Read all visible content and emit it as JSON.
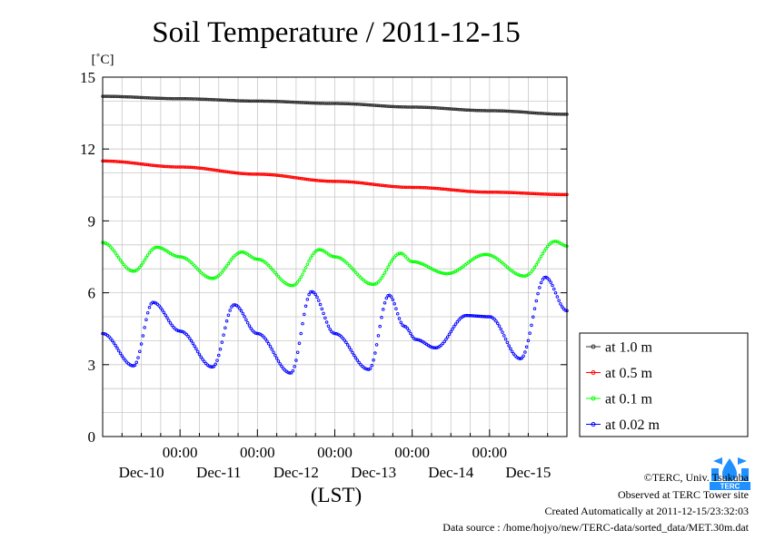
{
  "chart_data": {
    "type": "scatter",
    "title": "Soil Temperature / 2011-12-15",
    "ylabel": "[˚C]",
    "xlabel": "(LST)",
    "ylim": [
      0,
      15
    ],
    "yticks": [
      0,
      3,
      6,
      9,
      12,
      15
    ],
    "x_unit": "days since 2011-12-09 00:00 LST",
    "xlim": [
      0.0,
      6.0
    ],
    "xtick_major_labels": [
      "00:00",
      "00:00",
      "00:00",
      "00:00",
      "00:00"
    ],
    "xtick_major_positions": [
      1,
      2,
      3,
      4,
      5
    ],
    "date_labels": [
      "Dec-10",
      "Dec-11",
      "Dec-12",
      "Dec-13",
      "Dec-14",
      "Dec-15"
    ],
    "date_label_positions": [
      0.5,
      1.5,
      2.5,
      3.5,
      4.5,
      5.5
    ],
    "grid": true,
    "legend_position": "right-bottom-outside",
    "series": [
      {
        "name": "at 1.0 m",
        "color": "#303030",
        "x": [
          0.0,
          1.0,
          2.0,
          3.0,
          4.0,
          5.0,
          6.0
        ],
        "y": [
          14.2,
          14.1,
          14.0,
          13.9,
          13.75,
          13.6,
          13.45
        ]
      },
      {
        "name": "at 0.5 m",
        "color": "#ff0000",
        "x": [
          0.0,
          1.0,
          2.0,
          3.0,
          4.0,
          5.0,
          6.0
        ],
        "y": [
          11.5,
          11.25,
          10.95,
          10.65,
          10.4,
          10.2,
          10.1
        ]
      },
      {
        "name": "at 0.1 m",
        "color": "#00ff00",
        "x": [
          0.0,
          0.4,
          0.7,
          1.0,
          1.42,
          1.8,
          2.0,
          2.45,
          2.8,
          3.0,
          3.5,
          3.85,
          4.0,
          4.45,
          4.95,
          5.45,
          5.85,
          6.0
        ],
        "y": [
          8.1,
          6.9,
          7.9,
          7.5,
          6.6,
          7.7,
          7.4,
          6.3,
          7.8,
          7.5,
          6.35,
          7.65,
          7.3,
          6.8,
          7.6,
          6.7,
          8.15,
          7.95
        ]
      },
      {
        "name": "at 0.02 m",
        "color": "#0000ff",
        "x": [
          0.0,
          0.4,
          0.65,
          1.0,
          1.42,
          1.7,
          2.0,
          2.43,
          2.7,
          3.0,
          3.44,
          3.7,
          3.9,
          4.05,
          4.3,
          4.7,
          5.0,
          5.4,
          5.72,
          6.0
        ],
        "y": [
          4.3,
          2.95,
          5.6,
          4.4,
          2.9,
          5.5,
          4.3,
          2.65,
          6.05,
          4.3,
          2.8,
          5.9,
          4.6,
          4.05,
          3.7,
          5.05,
          5.0,
          3.25,
          6.65,
          5.25
        ]
      }
    ]
  },
  "credits": {
    "copyright": "©TERC, Univ. Tsukuba",
    "site": "Observed at TERC Tower site",
    "created": "Created Automatically at 2011-12-15/23:32:03",
    "source": "Data source : /home/hojyo/new/TERC-data/sorted_data/MET.30m.dat"
  },
  "logo": {
    "name": "terc-logo-icon",
    "text": "TERC",
    "color": "#1e90ff"
  }
}
